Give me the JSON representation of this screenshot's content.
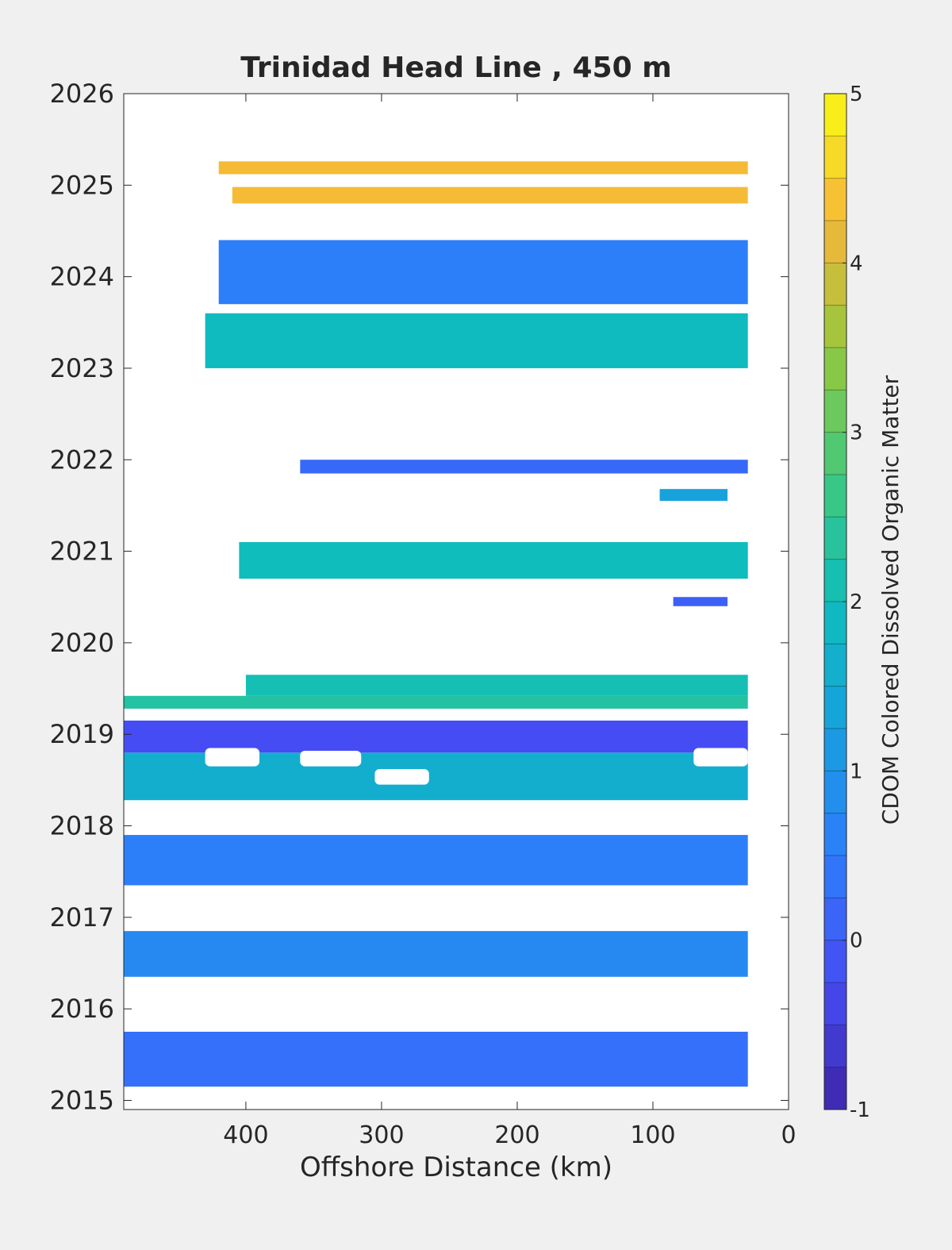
{
  "chart_data": {
    "type": "heatmap",
    "title": "Trinidad Head Line , 450 m",
    "xlabel": "Offshore Distance (km)",
    "ylabel": "",
    "x_reversed": true,
    "xlim": [
      490,
      0
    ],
    "ylim": [
      2014.9,
      2026
    ],
    "xticks": [
      400,
      300,
      200,
      100,
      0
    ],
    "yticks": [
      2015,
      2016,
      2017,
      2018,
      2019,
      2020,
      2021,
      2022,
      2023,
      2024,
      2025,
      2026
    ],
    "colorbar": {
      "label": "CDOM Colored Dissolved Organic Matter",
      "range": [
        -1,
        5
      ],
      "ticks": [
        -1,
        0,
        1,
        2,
        3,
        4,
        5
      ],
      "levels": 24,
      "colormap": "parula"
    },
    "bands": [
      {
        "x_start": 490,
        "x_end": 30,
        "t_start": 2015.15,
        "t_end": 2015.75,
        "value": 0.3
      },
      {
        "x_start": 490,
        "x_end": 30,
        "t_start": 2016.35,
        "t_end": 2016.85,
        "value": 0.75
      },
      {
        "x_start": 490,
        "x_end": 30,
        "t_start": 2017.35,
        "t_end": 2017.9,
        "value": 0.55
      },
      {
        "x_start": 490,
        "x_end": 30,
        "t_start": 2018.28,
        "t_end": 2018.8,
        "value": 1.6
      },
      {
        "x_start": 490,
        "x_end": 30,
        "t_start": 2018.8,
        "t_end": 2019.15,
        "value": -0.25
      },
      {
        "x_start": 490,
        "x_end": 30,
        "t_start": 2019.28,
        "t_end": 2019.42,
        "value": 2.3
      },
      {
        "x_start": 400,
        "x_end": 30,
        "t_start": 2019.42,
        "t_end": 2019.65,
        "value": 2.1
      },
      {
        "x_start": 405,
        "x_end": 30,
        "t_start": 2020.7,
        "t_end": 2021.1,
        "value": 2.0
      },
      {
        "x_start": 85,
        "x_end": 45,
        "t_start": 2020.4,
        "t_end": 2020.5,
        "value": 0.05
      },
      {
        "x_start": 95,
        "x_end": 45,
        "t_start": 2021.55,
        "t_end": 2021.68,
        "value": 1.3
      },
      {
        "x_start": 360,
        "x_end": 30,
        "t_start": 2021.85,
        "t_end": 2022.0,
        "value": 0.2
      },
      {
        "x_start": 430,
        "x_end": 30,
        "t_start": 2023.0,
        "t_end": 2023.6,
        "value": 1.95
      },
      {
        "x_start": 420,
        "x_end": 30,
        "t_start": 2023.7,
        "t_end": 2024.4,
        "value": 0.55
      },
      {
        "x_start": 410,
        "x_end": 30,
        "t_start": 2024.8,
        "t_end": 2024.98,
        "value": 4.3
      },
      {
        "x_start": 420,
        "x_end": 30,
        "t_start": 2025.12,
        "t_end": 2025.26,
        "value": 4.3
      }
    ],
    "gaps": [
      {
        "x_start": 430,
        "x_end": 390,
        "t_start": 2018.65,
        "t_end": 2018.85
      },
      {
        "x_start": 360,
        "x_end": 315,
        "t_start": 2018.65,
        "t_end": 2018.82
      },
      {
        "x_start": 305,
        "x_end": 265,
        "t_start": 2018.45,
        "t_end": 2018.62
      },
      {
        "x_start": 70,
        "x_end": 30,
        "t_start": 2018.65,
        "t_end": 2018.85
      }
    ]
  }
}
